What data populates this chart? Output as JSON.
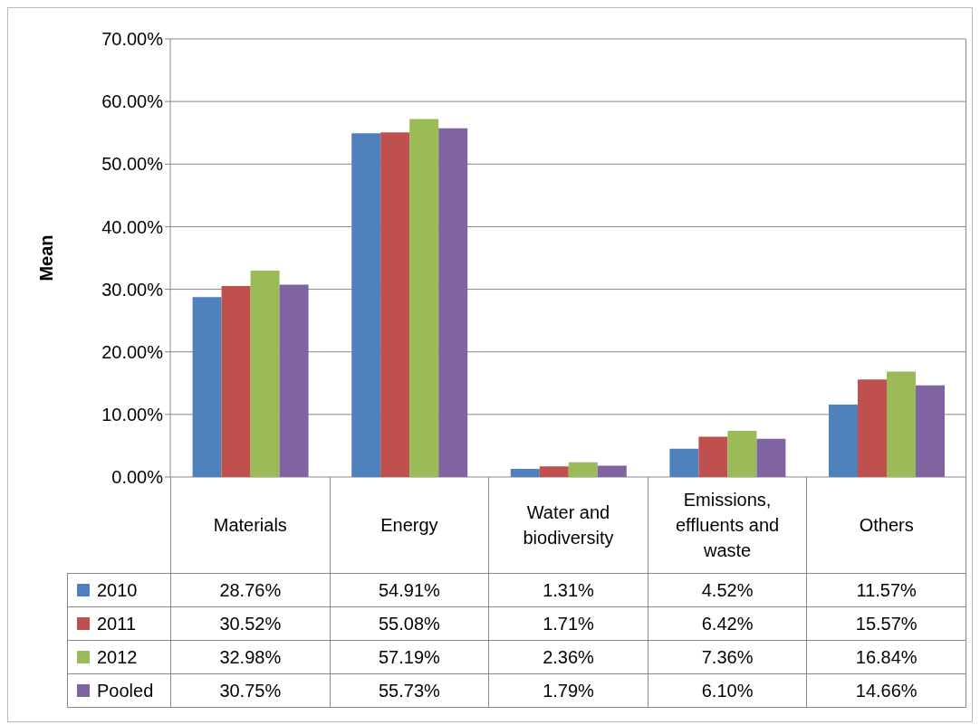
{
  "chart_data": {
    "type": "bar",
    "ylabel": "Mean",
    "categories": [
      "Materials",
      "Energy",
      "Water and biodiversity",
      "Emissions, effluents and waste",
      "Others"
    ],
    "series": [
      {
        "name": "2010",
        "color": "#4f81bd",
        "values": [
          28.76,
          54.91,
          1.31,
          4.52,
          11.57
        ],
        "value_labels": [
          "28.76%",
          "54.91%",
          "1.31%",
          "4.52%",
          "11.57%"
        ]
      },
      {
        "name": "2011",
        "color": "#c0504d",
        "values": [
          30.52,
          55.08,
          1.71,
          6.42,
          15.57
        ],
        "value_labels": [
          "30.52%",
          "55.08%",
          "1.71%",
          "6.42%",
          "15.57%"
        ]
      },
      {
        "name": "2012",
        "color": "#9bbb59",
        "values": [
          32.98,
          57.19,
          2.36,
          7.36,
          16.84
        ],
        "value_labels": [
          "32.98%",
          "57.19%",
          "2.36%",
          "7.36%",
          "16.84%"
        ]
      },
      {
        "name": "Pooled",
        "color": "#8064a2",
        "values": [
          30.75,
          55.73,
          1.79,
          6.1,
          14.66
        ],
        "value_labels": [
          "30.75%",
          "55.73%",
          "1.79%",
          "6.10%",
          "14.66%"
        ]
      }
    ],
    "ylim": [
      0,
      70
    ],
    "yticks": [
      {
        "value": 0,
        "label": "0.00%"
      },
      {
        "value": 10,
        "label": "10.00%"
      },
      {
        "value": 20,
        "label": "20.00%"
      },
      {
        "value": 30,
        "label": "30.00%"
      },
      {
        "value": 40,
        "label": "40.00%"
      },
      {
        "value": 50,
        "label": "50.00%"
      },
      {
        "value": 60,
        "label": "60.00%"
      },
      {
        "value": 70,
        "label": "70.00%"
      }
    ],
    "grid": "y",
    "legend": "bottom left"
  }
}
